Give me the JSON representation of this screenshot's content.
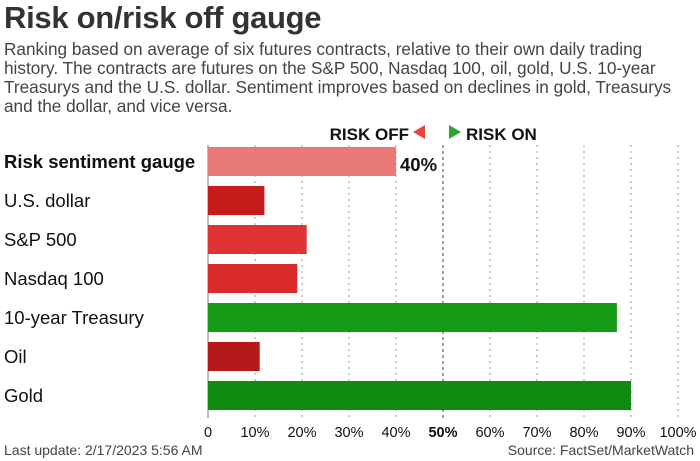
{
  "header": {
    "title": "Risk on/risk off gauge",
    "subtitle": "Ranking based on average of six futures contracts, relative to their own daily trading history. The contracts are futures on the S&P 500, Nasdaq 100, oil, gold, U.S. 10-year Treasurys and the U.S. dollar. Sentiment improves based on declines in gold, Treasurys and the dollar, and vice versa."
  },
  "legend": {
    "risk_off": "RISK OFF",
    "risk_on": "RISK ON",
    "risk_off_color": "#e8433a",
    "risk_on_color": "#2aa832"
  },
  "chart_data": {
    "type": "bar",
    "orientation": "horizontal",
    "categories": [
      "Risk sentiment gauge",
      "U.S. dollar",
      "S&P 500",
      "Nasdaq 100",
      "10-year Treasury",
      "Oil",
      "Gold"
    ],
    "values": [
      40,
      12,
      21,
      19,
      87,
      11,
      90
    ],
    "value_label": "40%",
    "colors": [
      "#ea7a78",
      "#c51b1b",
      "#e03434",
      "#d92b2b",
      "#149a14",
      "#b51919",
      "#0e8a0e"
    ],
    "xlim": [
      0,
      100
    ],
    "x_ticks": [
      "0",
      "10%",
      "20%",
      "30%",
      "40%",
      "50%",
      "60%",
      "70%",
      "80%",
      "90%",
      "100%"
    ],
    "grid": "vertical dotted",
    "midline": 50
  },
  "footer": {
    "updated": "Last update: 2/17/2023 5:56 AM",
    "source": "Source: FactSet/MarketWatch"
  }
}
